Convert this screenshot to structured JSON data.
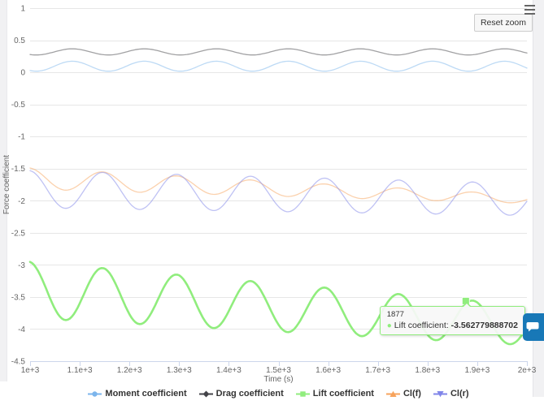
{
  "toolbar": {
    "reset_zoom_label": "Reset zoom",
    "context_menu_icon": "hamburger-menu"
  },
  "chart_data": {
    "type": "line",
    "title": "",
    "xlabel": "Time (s)",
    "ylabel": "Force coefficient",
    "xlim": [
      1000,
      2000
    ],
    "ylim": [
      -4.5,
      1
    ],
    "x_tick_step": 100,
    "y_tick_step": 0.5,
    "x_tick_labels": [
      "1e+3",
      "1.1e+3",
      "1.2e+3",
      "1.3e+3",
      "1.4e+3",
      "1.5e+3",
      "1.6e+3",
      "1.7e+3",
      "1.8e+3",
      "1.9e+3",
      "2e+3"
    ],
    "y_tick_labels": [
      "1",
      "0.5",
      "0",
      "-0.5",
      "-1",
      "-1.5",
      "-2",
      "-2.5",
      "-3",
      "-3.5",
      "-4",
      "-4.5"
    ],
    "grid": true,
    "legend_position": "bottom-center",
    "series": [
      {
        "name": "Moment coefficient",
        "color": "#7cb5ec",
        "line_width": 1.3,
        "opacity": 0.5,
        "approx_range": [
          0.02,
          0.17
        ],
        "model": {
          "mean": 0.095,
          "mean_slope": 0,
          "amplitude": 0.078,
          "amplitude_slope": 0,
          "period": 145,
          "peak_at": 1085
        }
      },
      {
        "name": "Drag coefficient",
        "color": "#434348",
        "line_width": 1.3,
        "opacity": 0.5,
        "approx_range": [
          0.27,
          0.37
        ],
        "model": {
          "mean": 0.318,
          "mean_slope": 0,
          "amplitude": 0.048,
          "amplitude_slope": 0,
          "period": 145,
          "peak_at": 1085
        }
      },
      {
        "name": "Lift coefficient",
        "color": "#90ed7d",
        "line_width": 2.6,
        "opacity": 1,
        "hovered": true,
        "approx_range": [
          -4.24,
          -2.95
        ],
        "model": {
          "mean": -3.39,
          "mean_slope": -0.00055,
          "amplitude": 0.44,
          "amplitude_slope": -0.00013,
          "period": 149,
          "peak_at": 997
        }
      },
      {
        "name": "Cl(f)",
        "color": "#f7a35c",
        "line_width": 1.3,
        "opacity": 0.5,
        "approx_range": [
          -1.98,
          -1.49
        ],
        "model": {
          "mean": -1.655,
          "mean_slope": -0.00032,
          "amplitude": 0.165,
          "amplitude_slope": -0.0001,
          "period": 149,
          "peak_at": 997
        }
      },
      {
        "name": "Cl(r)",
        "color": "#8085e9",
        "line_width": 1.3,
        "opacity": 0.5,
        "approx_range": [
          -2.2,
          -1.52
        ],
        "model": {
          "mean": -1.82,
          "mean_slope": -0.00016,
          "amplitude": 0.29,
          "amplitude_slope": -4e-05,
          "period": 149,
          "peak_at": 997
        }
      }
    ],
    "hovered_point": {
      "series": "Lift coefficient",
      "x": 1877,
      "y": -3.562779888702
    }
  },
  "tooltip": {
    "header": "1877",
    "bullet": "●",
    "series_label": "Lift coefficient",
    "separator": ": ",
    "value": "-3.562779888702"
  },
  "legend": {
    "items": [
      {
        "label": "Moment coefficient",
        "color": "#7cb5ec",
        "marker": "circle"
      },
      {
        "label": "Drag coefficient",
        "color": "#434348",
        "marker": "diamond"
      },
      {
        "label": "Lift coefficient",
        "color": "#90ed7d",
        "marker": "square"
      },
      {
        "label": "Cl(f)",
        "color": "#f7a35c",
        "marker": "triangle"
      },
      {
        "label": "Cl(r)",
        "color": "#8085e9",
        "marker": "triangle-down"
      }
    ]
  },
  "feedback_button": {
    "icon": "chat-bubble",
    "color": "#1878b7"
  },
  "colors": {
    "grid": "#e6e6e6",
    "axis_line": "#ccd6eb",
    "tick_text": "#666666",
    "title_text": "#666666",
    "page_gutter": "#f1f1f3"
  }
}
